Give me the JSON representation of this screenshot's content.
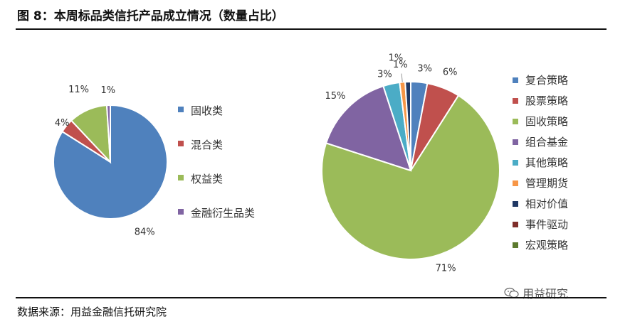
{
  "title": "图 8：本周标品类信托产品成立情况（数量占比）",
  "source": "数据来源：用益金融信托研究院",
  "watermark": "用益研究",
  "chart_data": [
    {
      "type": "pie",
      "categories": [
        "固收类",
        "混合类",
        "权益类",
        "金融衍生品类"
      ],
      "values": [
        84,
        4,
        11,
        1
      ],
      "labels": [
        "84%",
        "4%",
        "11%",
        "1%"
      ],
      "colors": [
        "#4F81BD",
        "#C0504D",
        "#9BBB59",
        "#8064A2"
      ],
      "legend_placement": "right"
    },
    {
      "type": "pie",
      "categories": [
        "复合策略",
        "股票策略",
        "固收策略",
        "组合基金",
        "其他策略",
        "管理期货",
        "相对价值",
        "事件驱动",
        "宏观策略"
      ],
      "values": [
        3,
        6,
        71,
        15,
        3,
        1,
        1,
        0,
        0
      ],
      "labels": [
        "3%",
        "6%",
        "71%",
        "15%",
        "3%",
        "1%",
        "1%",
        "",
        ""
      ],
      "colors": [
        "#4F81BD",
        "#C0504D",
        "#9BBB59",
        "#8064A2",
        "#4BACC6",
        "#F79646",
        "#1F3864",
        "#7F2E2A",
        "#5C7A2E"
      ],
      "legend_placement": "right"
    }
  ]
}
